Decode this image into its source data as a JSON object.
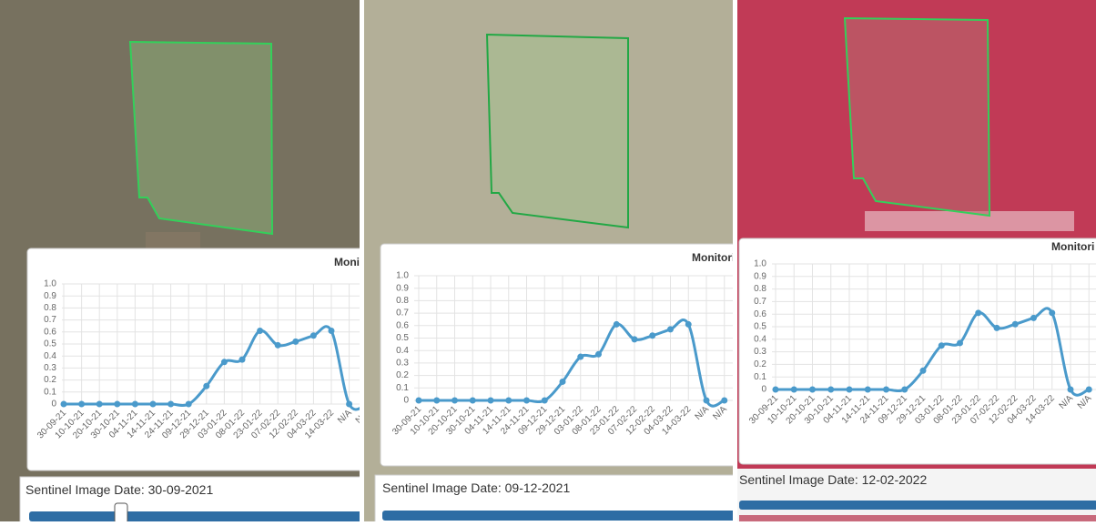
{
  "chart_data": [
    {
      "type": "line",
      "title": "Moni",
      "categories": [
        "30-09-21",
        "10-10-21",
        "20-10-21",
        "30-10-21",
        "04-11-21",
        "14-11-21",
        "24-11-21",
        "09-12-21",
        "29-12-21",
        "03-01-22",
        "08-01-22",
        "23-01-22",
        "07-02-22",
        "12-02-22",
        "04-03-22",
        "14-03-22",
        "N/A",
        "N/A"
      ],
      "values": [
        0,
        0,
        0,
        0,
        0,
        0,
        0,
        0,
        0.15,
        0.35,
        0.37,
        0.61,
        0.49,
        0.52,
        0.57,
        0.61,
        0,
        0
      ],
      "color": "#4a9acb",
      "ylim": [
        0,
        1
      ],
      "yticks": [
        0,
        0.1,
        0.2,
        0.3,
        0.4,
        0.5,
        0.6,
        0.7,
        0.8,
        0.9,
        {
          "value": 1,
          "label": "1.0"
        }
      ],
      "grid": true
    },
    {
      "type": "line",
      "title": "Monitori",
      "categories": [
        "30-09-21",
        "10-10-21",
        "20-10-21",
        "30-10-21",
        "04-11-21",
        "14-11-21",
        "24-11-21",
        "09-12-21",
        "29-12-21",
        "03-01-22",
        "08-01-22",
        "23-01-22",
        "07-02-22",
        "12-02-22",
        "04-03-22",
        "14-03-22",
        "N/A",
        "N/A"
      ],
      "values": [
        0,
        0,
        0,
        0,
        0,
        0,
        0,
        0,
        0.15,
        0.35,
        0.37,
        0.61,
        0.49,
        0.52,
        0.57,
        0.61,
        0,
        0
      ],
      "color": "#4a9acb",
      "ylim": [
        0,
        1
      ],
      "yticks": [
        0,
        0.1,
        0.2,
        0.3,
        0.4,
        0.5,
        0.6,
        0.7,
        0.8,
        0.9,
        {
          "value": 1,
          "label": "1.0"
        }
      ],
      "grid": true
    },
    {
      "type": "line",
      "title": "Monitori",
      "categories": [
        "30-09-21",
        "10-10-21",
        "20-10-21",
        "30-10-21",
        "04-11-21",
        "14-11-21",
        "24-11-21",
        "09-12-21",
        "29-12-21",
        "03-01-22",
        "08-01-22",
        "23-01-22",
        "07-02-22",
        "12-02-22",
        "04-03-22",
        "14-03-22",
        "N/A",
        "N/A"
      ],
      "values": [
        0,
        0,
        0,
        0,
        0,
        0,
        0,
        0,
        0.15,
        0.35,
        0.37,
        0.61,
        0.49,
        0.52,
        0.57,
        0.61,
        0,
        0
      ],
      "color": "#4a9acb",
      "ylim": [
        0,
        1
      ],
      "yticks": [
        0,
        0.1,
        0.2,
        0.3,
        0.4,
        0.5,
        0.6,
        0.7,
        0.8,
        0.9,
        {
          "value": 1,
          "label": "1.0"
        }
      ],
      "grid": true
    }
  ],
  "captions": [
    "Sentinel Image Date: 30-09-2021",
    "Sentinel Image Date: 09-12-2021",
    "Sentinel Image Date: 12-02-2022"
  ]
}
